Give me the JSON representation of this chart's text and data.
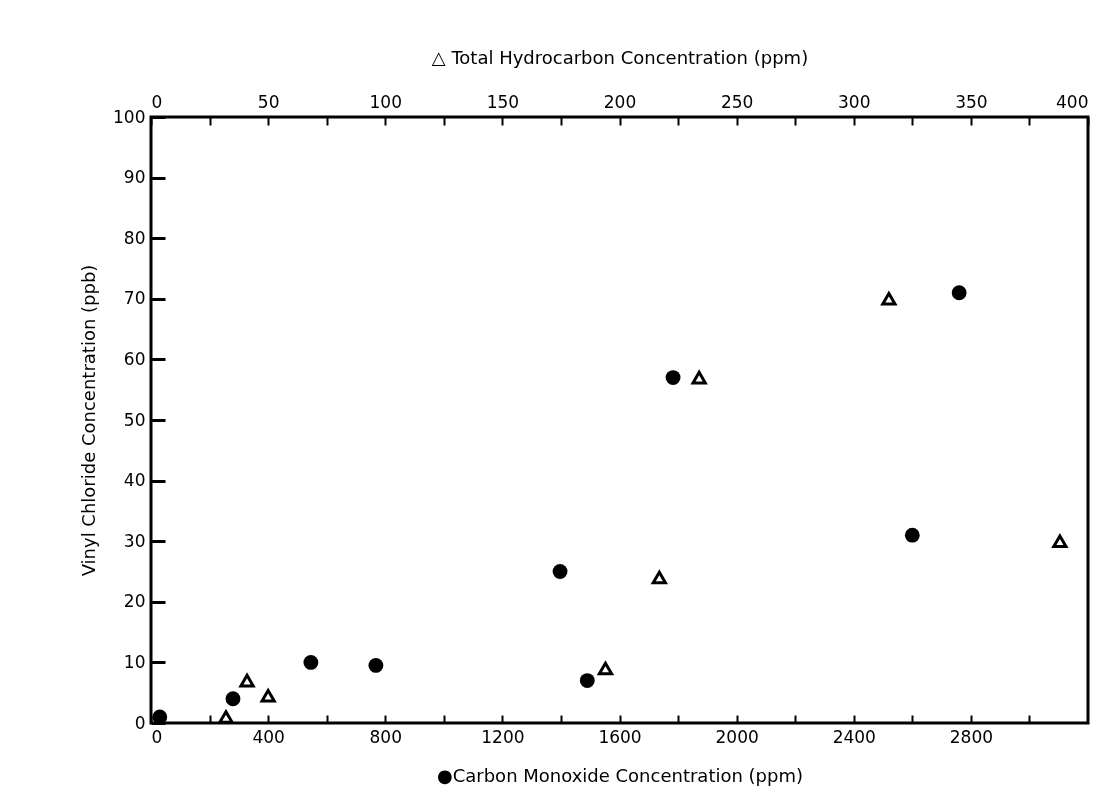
{
  "chart_data": {
    "type": "scatter",
    "xlabel": "●Carbon Monoxide Concentration (ppm)",
    "x2label": "△ Total Hydrocarbon Concentration (ppm)",
    "ylabel": "Vinyl Chloride Concentration (ppb)",
    "xlim": [
      0,
      3200
    ],
    "xticks": [
      0,
      {
        "value": 200,
        "label": null
      },
      400,
      {
        "value": 600,
        "label": null
      },
      800,
      {
        "value": 1000,
        "label": null
      },
      1200,
      {
        "value": 1400,
        "label": null
      },
      1600,
      {
        "value": 1800,
        "label": null
      },
      2000,
      {
        "value": 2200,
        "label": null
      },
      2400,
      {
        "value": 2600,
        "label": null
      },
      2800,
      {
        "value": 3000,
        "label": null
      }
    ],
    "x2lim": [
      0,
      400
    ],
    "x2ticks": [
      0,
      {
        "value": 25,
        "label": null
      },
      50,
      {
        "value": 75,
        "label": null
      },
      100,
      {
        "value": 125,
        "label": null
      },
      150,
      {
        "value": 175,
        "label": null
      },
      200,
      {
        "value": 225,
        "label": null
      },
      250,
      {
        "value": 275,
        "label": null
      },
      300,
      {
        "value": 325,
        "label": null
      },
      350,
      {
        "value": 375,
        "label": null
      },
      400
    ],
    "ylim": [
      0,
      100
    ],
    "yticks": [
      0,
      10,
      20,
      30,
      40,
      50,
      60,
      70,
      80,
      90,
      100
    ],
    "grid": false,
    "series": [
      {
        "marker": "circle",
        "color": "#000000",
        "x": [
          30,
          280,
          546,
          768,
          1397,
          1490,
          1783,
          2600,
          2760
        ],
        "values": [
          1,
          4,
          10,
          9.5,
          25,
          7,
          57,
          31,
          71
        ]
      },
      {
        "marker": "triangle",
        "axis": "x2",
        "color": "#000000",
        "x": [
          32,
          41,
          50,
          194,
          217,
          234,
          315,
          388
        ],
        "values": [
          1,
          7,
          4.5,
          9,
          24,
          57,
          70,
          30
        ]
      }
    ]
  }
}
